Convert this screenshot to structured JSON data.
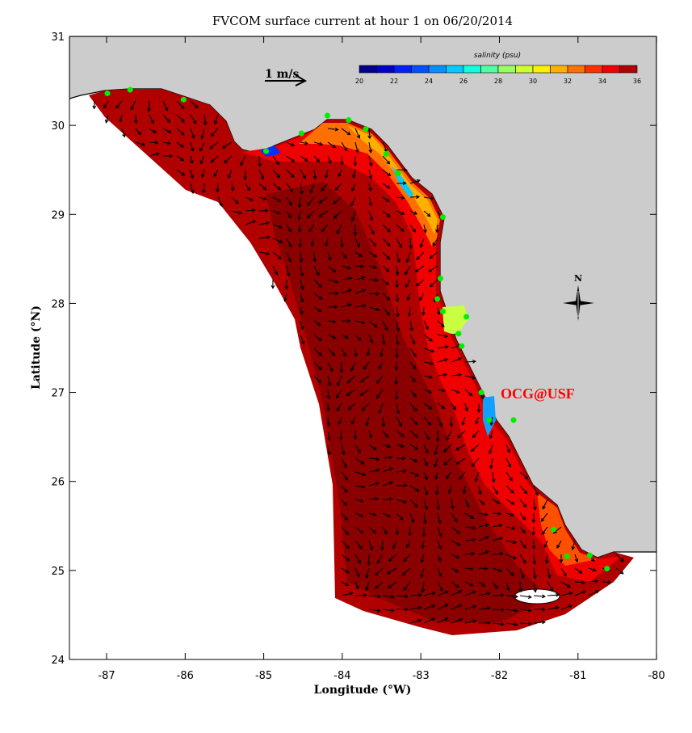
{
  "chart_data": {
    "type": "map",
    "title": "FVCOM surface current at hour 1 on 06/20/2014",
    "xlabel": "Longitude (°W)",
    "ylabel": "Latitude (°N)",
    "xlim": [
      -87.5,
      -80
    ],
    "ylim": [
      24,
      31
    ],
    "xticks": [
      "-87",
      "-86",
      "-85",
      "-84",
      "-83",
      "-82",
      "-81",
      "-80"
    ],
    "yticks": [
      "24",
      "25",
      "26",
      "27",
      "28",
      "29",
      "30",
      "31"
    ],
    "scale_arrow_label": "1 m/s",
    "colorbar": {
      "label": "salinity (psu)",
      "range": [
        20,
        36
      ],
      "tick_labels": [
        "20",
        "22",
        "24",
        "26",
        "28",
        "30",
        "32",
        "34",
        "36"
      ],
      "colors": [
        "#00008c",
        "#0000cc",
        "#0020ff",
        "#0050ff",
        "#0090ff",
        "#00ccff",
        "#10ffe0",
        "#50ffa0",
        "#98ff60",
        "#d0ff30",
        "#fff000",
        "#ffb000",
        "#ff7000",
        "#ff3000",
        "#f00000",
        "#b00000"
      ]
    },
    "compass_label": "N",
    "watermark": "OCG@USF",
    "colors": {
      "land": "#cccccc",
      "outside": "#ffffff",
      "station": "#00ee00",
      "offshore": "#8a0000"
    },
    "stations": [
      [
        -86.99,
        30.36
      ],
      [
        -86.7,
        30.4
      ],
      [
        -86.02,
        30.29
      ],
      [
        -84.97,
        29.71
      ],
      [
        -84.52,
        29.91
      ],
      [
        -84.19,
        30.11
      ],
      [
        -83.92,
        30.06
      ],
      [
        -83.7,
        29.96
      ],
      [
        -83.44,
        29.68
      ],
      [
        -83.29,
        29.46
      ],
      [
        -82.72,
        28.97
      ],
      [
        -82.75,
        28.28
      ],
      [
        -82.79,
        28.05
      ],
      [
        -82.72,
        27.91
      ],
      [
        -82.42,
        27.85
      ],
      [
        -82.52,
        27.66
      ],
      [
        -82.48,
        27.52
      ],
      [
        -82.23,
        27.0
      ],
      [
        -82.13,
        26.69
      ],
      [
        -81.82,
        26.69
      ],
      [
        -81.31,
        25.46
      ],
      [
        -81.14,
        25.16
      ],
      [
        -80.85,
        25.17
      ],
      [
        -80.63,
        25.02
      ]
    ]
  }
}
